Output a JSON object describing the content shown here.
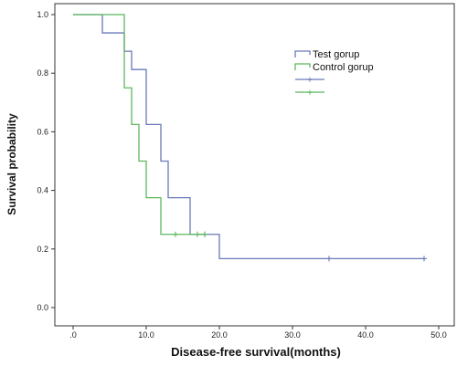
{
  "chart_data": {
    "type": "line",
    "step": true,
    "xlabel": "Disease-free survival(months)",
    "ylabel": "Survival probability",
    "xlim": [
      0,
      50
    ],
    "ylim": [
      0,
      1
    ],
    "xticks": [
      ".0",
      "10.0",
      "20.0",
      "30.0",
      "40.0",
      "50.0"
    ],
    "yticks": [
      "0.0",
      "0.2",
      "0.4",
      "0.6",
      "0.8",
      "1.0"
    ],
    "grid": false,
    "legend_position": "top-right",
    "legend_censor_mark": "+",
    "series": [
      {
        "name": "Test gorup",
        "color": "#6a79b8",
        "steps": [
          [
            0,
            1.0
          ],
          [
            4,
            0.9375
          ],
          [
            7,
            0.875
          ],
          [
            8,
            0.8125
          ],
          [
            10,
            0.625
          ],
          [
            12,
            0.5
          ],
          [
            13,
            0.375
          ],
          [
            16,
            0.25
          ],
          [
            20,
            0.167
          ],
          [
            48,
            0.167
          ]
        ],
        "censored": [
          [
            18,
            0.25
          ],
          [
            35,
            0.167
          ],
          [
            48,
            0.167
          ]
        ]
      },
      {
        "name": "Control gorup",
        "color": "#5cb85c",
        "steps": [
          [
            0,
            1.0
          ],
          [
            7,
            0.75
          ],
          [
            8,
            0.625
          ],
          [
            9,
            0.5
          ],
          [
            10,
            0.375
          ],
          [
            12,
            0.25
          ],
          [
            18,
            0.25
          ]
        ],
        "censored": [
          [
            14,
            0.25
          ],
          [
            17,
            0.25
          ],
          [
            18,
            0.25
          ]
        ]
      }
    ]
  }
}
